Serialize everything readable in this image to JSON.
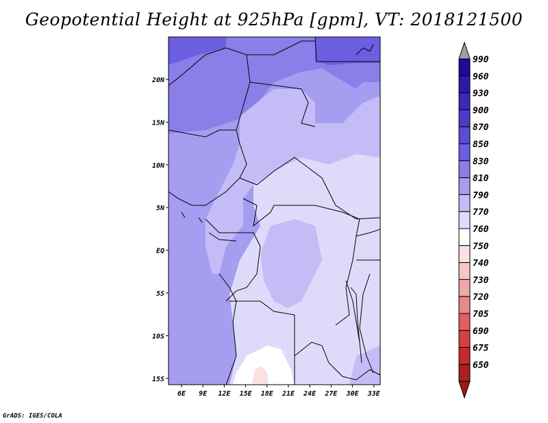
{
  "title": "Geopotential Height at 925hPa [gpm], VT: 2018121500",
  "credit": "GrADS: IGES/COLA",
  "map": {
    "lon_ticks": [
      "6E",
      "9E",
      "12E",
      "15E",
      "18E",
      "21E",
      "24E",
      "27E",
      "30E",
      "33E"
    ],
    "lat_ticks": [
      "20N",
      "15N",
      "10N",
      "5N",
      "EQ",
      "5S",
      "10S",
      "15S"
    ]
  },
  "colorbar": {
    "levels": [
      "990",
      "960",
      "930",
      "900",
      "870",
      "850",
      "830",
      "810",
      "790",
      "770",
      "760",
      "750",
      "740",
      "730",
      "720",
      "705",
      "690",
      "675",
      "650"
    ],
    "colors": [
      "#1c0a9c",
      "#2a1aa8",
      "#3a2ab8",
      "#4b3cc8",
      "#5a4cd4",
      "#6c5ee0",
      "#8a7ee8",
      "#a69cf0",
      "#c4bcf6",
      "#dedbfa",
      "#ffffff",
      "#fbe0e0",
      "#f6c6c6",
      "#f0a8a8",
      "#e88888",
      "#e06060",
      "#d84040",
      "#c02c2c",
      "#a82020"
    ],
    "top_arrow_color": "#a0a0a0",
    "bottom_arrow_color": "#a01818"
  }
}
